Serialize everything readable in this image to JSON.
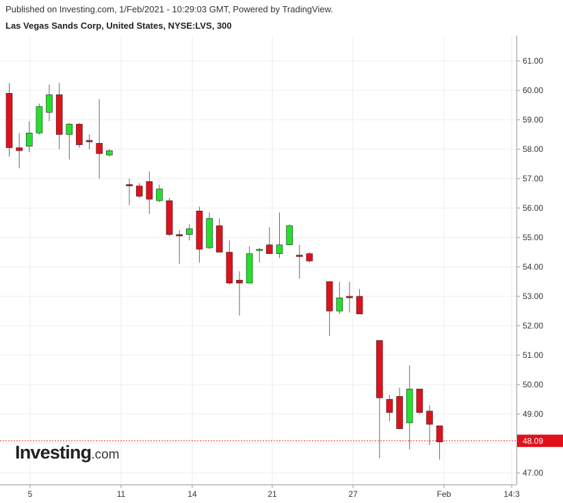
{
  "header": {
    "published": "Published on Investing.com, 1/Feb/2021 - 10:29:03 GMT, Powered by TradingView.",
    "symbol": "Las Vegas Sands Corp, United States, NYSE:LVS, 300"
  },
  "logo": {
    "brand": "Investing",
    "suffix": ".com"
  },
  "chart_data": {
    "type": "candlestick",
    "interval": "300",
    "ylim": [
      46.6,
      61.6
    ],
    "y_ticks": [
      "47.00",
      "48.00",
      "49.00",
      "50.00",
      "51.00",
      "52.00",
      "53.00",
      "54.00",
      "55.00",
      "56.00",
      "57.00",
      "58.00",
      "59.00",
      "60.00",
      "61.00"
    ],
    "x_ticks": [
      "5",
      "11",
      "14",
      "21",
      "27",
      "Feb",
      "14:3"
    ],
    "last_price": 48.09,
    "last_price_label": "48.09",
    "grid": true,
    "colors": {
      "up": "#22e12b",
      "down": "#e0111b",
      "wick": "#666666",
      "price_line": "#e0111b",
      "grid": "#eeeeee",
      "axis": "#999999"
    },
    "candles": [
      {
        "o": 59.9,
        "h": 60.25,
        "l": 57.75,
        "c": 58.05
      },
      {
        "o": 58.05,
        "h": 58.55,
        "l": 57.35,
        "c": 57.95
      },
      {
        "o": 58.1,
        "h": 58.95,
        "l": 57.9,
        "c": 58.55
      },
      {
        "o": 58.55,
        "h": 59.55,
        "l": 58.5,
        "c": 59.45
      },
      {
        "o": 59.25,
        "h": 60.2,
        "l": 58.95,
        "c": 59.85
      },
      {
        "o": 59.85,
        "h": 60.25,
        "l": 58.0,
        "c": 58.5
      },
      {
        "o": 58.5,
        "h": 58.9,
        "l": 57.65,
        "c": 58.85
      },
      {
        "o": 58.85,
        "h": 58.9,
        "l": 58.05,
        "c": 58.15
      },
      {
        "o": 58.3,
        "h": 58.5,
        "l": 58.0,
        "c": 58.25
      },
      {
        "o": 58.2,
        "h": 59.7,
        "l": 57.0,
        "c": 57.85
      },
      {
        "o": 57.8,
        "h": 58.0,
        "l": 57.75,
        "c": 57.95
      },
      null,
      {
        "o": 56.8,
        "h": 57.0,
        "l": 56.1,
        "c": 56.75
      },
      {
        "o": 56.75,
        "h": 56.85,
        "l": 56.35,
        "c": 56.4
      },
      {
        "o": 56.9,
        "h": 57.25,
        "l": 55.8,
        "c": 56.3
      },
      {
        "o": 56.25,
        "h": 56.8,
        "l": 56.2,
        "c": 56.65
      },
      {
        "o": 56.25,
        "h": 56.35,
        "l": 55.05,
        "c": 55.1
      },
      {
        "o": 55.1,
        "h": 55.25,
        "l": 54.1,
        "c": 55.05
      },
      {
        "o": 55.1,
        "h": 55.45,
        "l": 54.9,
        "c": 55.3
      },
      {
        "o": 55.9,
        "h": 56.05,
        "l": 54.15,
        "c": 54.6
      },
      {
        "o": 54.65,
        "h": 55.85,
        "l": 54.6,
        "c": 55.65
      },
      {
        "o": 55.4,
        "h": 55.65,
        "l": 54.5,
        "c": 54.5
      },
      {
        "o": 54.5,
        "h": 54.9,
        "l": 53.4,
        "c": 53.45
      },
      {
        "o": 53.55,
        "h": 53.85,
        "l": 52.35,
        "c": 53.45
      },
      {
        "o": 53.45,
        "h": 54.7,
        "l": 53.45,
        "c": 54.45
      },
      {
        "o": 54.6,
        "h": 54.65,
        "l": 54.15,
        "c": 54.6
      },
      {
        "o": 54.75,
        "h": 55.35,
        "l": 54.5,
        "c": 54.45
      },
      {
        "o": 54.45,
        "h": 55.85,
        "l": 54.3,
        "c": 54.75
      },
      {
        "o": 54.75,
        "h": 55.45,
        "l": 54.75,
        "c": 55.4
      },
      {
        "o": 54.4,
        "h": 54.75,
        "l": 53.6,
        "c": 54.35
      },
      {
        "o": 54.45,
        "h": 54.5,
        "l": 54.15,
        "c": 54.2
      },
      null,
      {
        "o": 53.5,
        "h": 53.5,
        "l": 51.65,
        "c": 52.5
      },
      {
        "o": 52.5,
        "h": 53.5,
        "l": 52.4,
        "c": 52.95
      },
      {
        "o": 53.0,
        "h": 53.5,
        "l": 52.45,
        "c": 52.95
      },
      {
        "o": 53.0,
        "h": 53.25,
        "l": 52.4,
        "c": 52.4
      },
      null,
      {
        "o": 51.5,
        "h": 51.5,
        "l": 47.5,
        "c": 49.55
      },
      {
        "o": 49.5,
        "h": 49.65,
        "l": 48.75,
        "c": 49.05
      },
      {
        "o": 49.6,
        "h": 49.9,
        "l": 48.5,
        "c": 48.5
      },
      {
        "o": 48.7,
        "h": 50.65,
        "l": 47.8,
        "c": 49.85
      },
      {
        "o": 49.85,
        "h": 49.85,
        "l": 49.0,
        "c": 49.05
      },
      {
        "o": 49.1,
        "h": 49.3,
        "l": 47.95,
        "c": 48.65
      },
      {
        "o": 48.6,
        "h": 48.6,
        "l": 47.45,
        "c": 48.05
      }
    ]
  }
}
